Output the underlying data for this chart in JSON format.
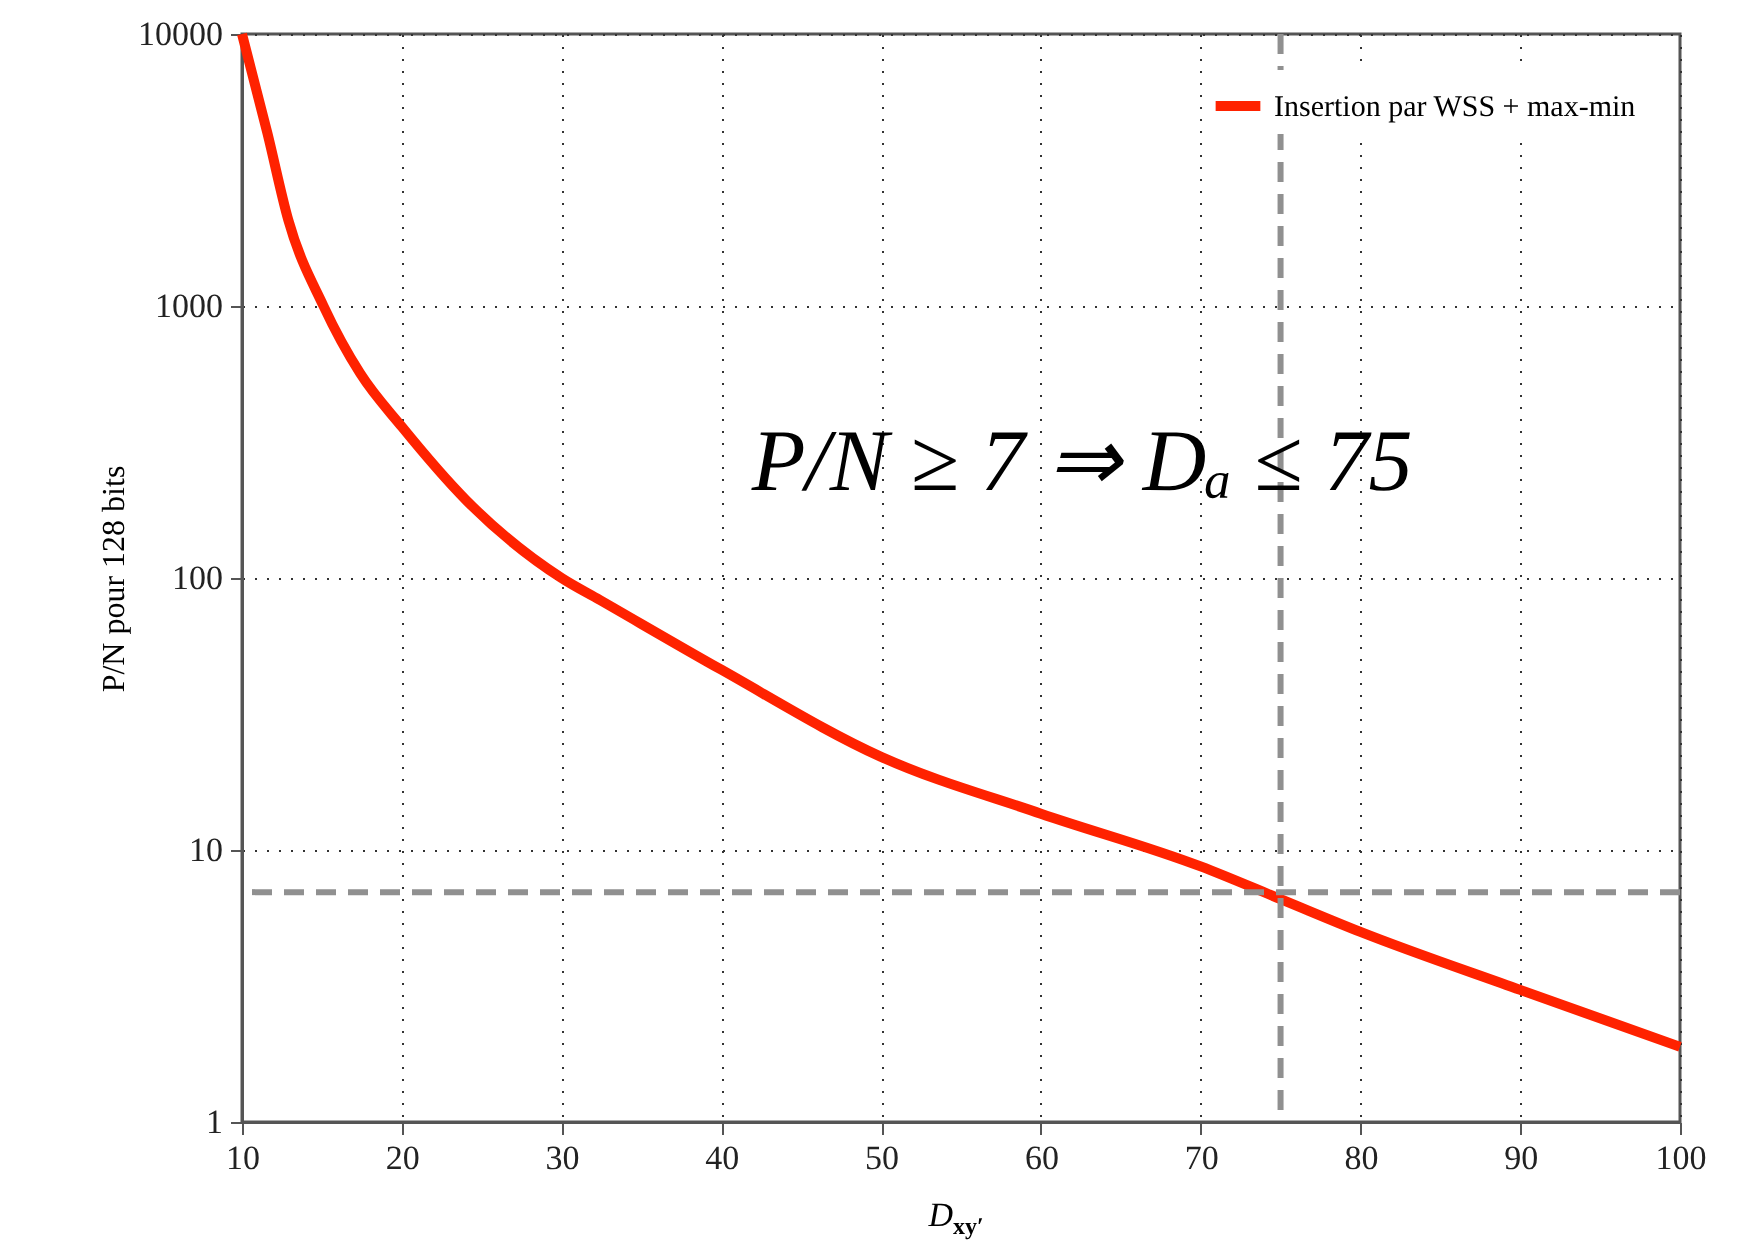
{
  "chart_data": {
    "type": "line",
    "xlabel": "D$_{xy′}$",
    "ylabel": "P/N pour 128 bits",
    "x": [
      10,
      11.6,
      12.9,
      15.1,
      17.4,
      20,
      24,
      30,
      32.4,
      40,
      50,
      60,
      70,
      75,
      80,
      90,
      100
    ],
    "series": [
      {
        "name": "Insertion par WSS + max-min",
        "color": "#ff2200",
        "values": [
          10000,
          4300,
          2070,
          1000,
          565,
          360,
          194,
          100,
          83,
          46,
          22,
          13.6,
          8.7,
          6.6,
          5.0,
          3.06,
          1.89
        ]
      }
    ],
    "xlim": [
      10,
      100
    ],
    "xticks": [
      10,
      20,
      30,
      40,
      50,
      60,
      70,
      80,
      90,
      100
    ],
    "ylim": [
      1,
      10000
    ],
    "yticks": [
      1,
      10,
      100,
      1000,
      10000
    ],
    "log": "y",
    "grid": true,
    "legend": "top right",
    "marker": "none",
    "line_style": "solid",
    "ref_lines": [
      {
        "axis": "y",
        "value": 7,
        "color": "#909090",
        "line_style": "dashed"
      },
      {
        "axis": "x",
        "value": 75,
        "color": "#909090",
        "line_style": "dashed"
      }
    ],
    "annotations": [
      "P/N ≥ 7 ⇒ Dₐ ≤ 75"
    ]
  }
}
